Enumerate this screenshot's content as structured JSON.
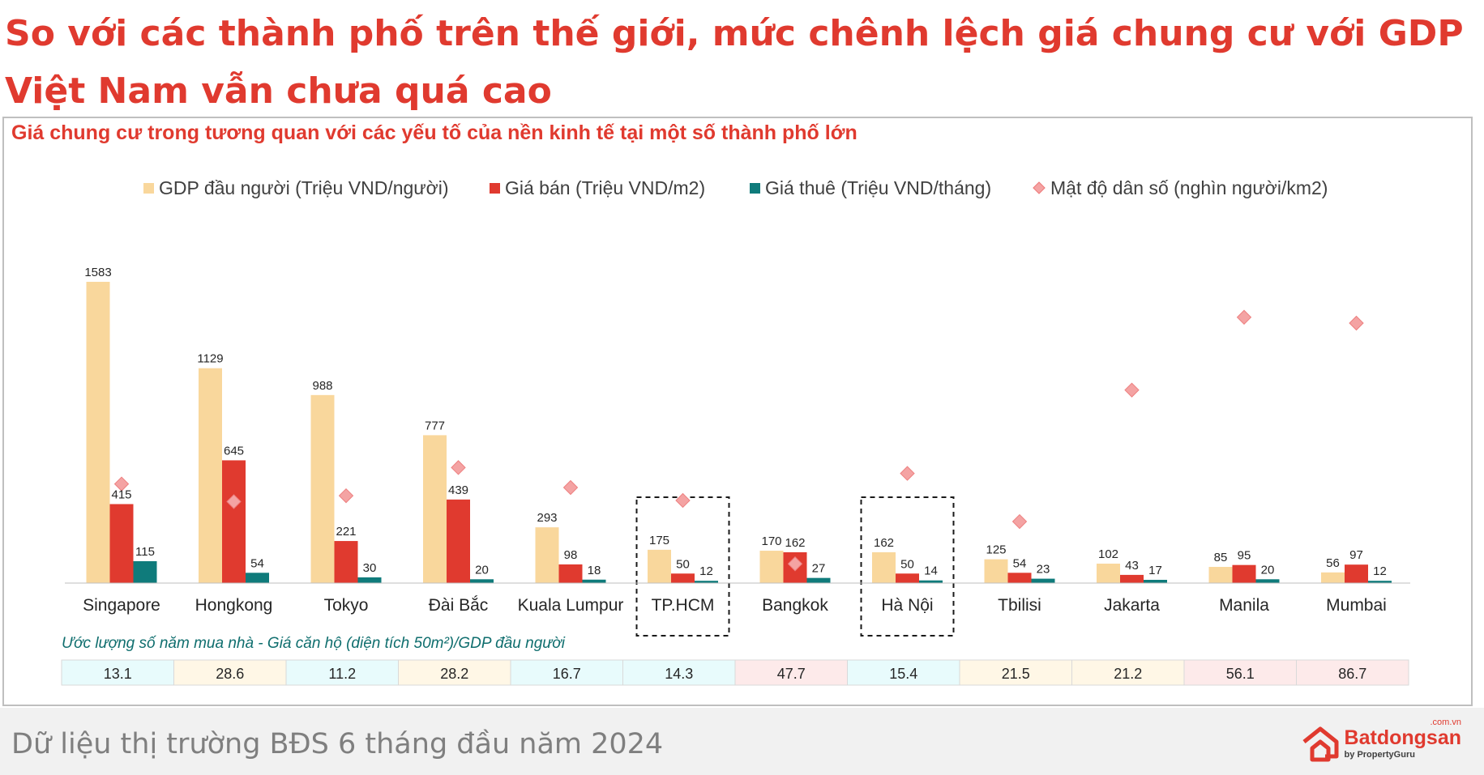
{
  "headline": "So với các thành phố trên thế giới, mức chênh lệch giá chung cư với GDP Việt Nam vẫn chưa quá cao",
  "footer": {
    "text": "Dữ liệu thị trường BĐS 6 tháng đầu năm 2024",
    "logo_name": "Batdongsan",
    "logo_domain": ".com.vn",
    "logo_sub": "by PropertyGuru"
  },
  "colors": {
    "gdp": "#f9d79c",
    "price": "#e03a2f",
    "rent": "#0f7b7b",
    "density": "#f4a3a3",
    "accent": "#e03a2f"
  },
  "chart_data": {
    "type": "bar",
    "title": "Giá chung cư trong tương quan với các yếu tố của nền kinh tế tại một số thành phố lớn",
    "legend_position": "top",
    "grid": false,
    "categories": [
      "Singapore",
      "Hongkong",
      "Tokyo",
      "Đài Bắc",
      "Kuala Lumpur",
      "TP.HCM",
      "Bangkok",
      "Hà Nội",
      "Tbilisi",
      "Jakarta",
      "Manila",
      "Mumbai"
    ],
    "highlighted_categories": [
      "TP.HCM",
      "Hà Nội"
    ],
    "ylim": [
      0,
      1600
    ],
    "series": [
      {
        "name": "GDP đầu người (Triệu VND/người)",
        "type": "bar",
        "values": [
          1583,
          1129,
          988,
          777,
          293,
          175,
          170,
          162,
          125,
          102,
          85,
          56
        ]
      },
      {
        "name": "Giá bán (Triệu VND/m2)",
        "type": "bar",
        "values": [
          415,
          645,
          221,
          439,
          98,
          50,
          162,
          50,
          54,
          43,
          95,
          97
        ]
      },
      {
        "name": "Giá thuê (Triệu VND/tháng)",
        "type": "bar",
        "values": [
          115,
          54,
          30,
          20,
          18,
          12,
          27,
          14,
          23,
          17,
          20,
          12
        ]
      },
      {
        "name": "Mật độ dân số (nghìn người/km2)",
        "type": "scatter",
        "values": [
          8.3,
          6.8,
          7.3,
          9.7,
          8.0,
          6.9,
          1.5,
          9.2,
          5.1,
          16.3,
          22.5,
          22.0
        ]
      }
    ],
    "table": {
      "label": "Ước lượng số năm mua nhà - Giá căn hộ (diện tích 50m²)/GDP đầu người",
      "values": [
        "13.1",
        "28.6",
        "11.2",
        "28.2",
        "16.7",
        "14.3",
        "47.7",
        "15.4",
        "21.5",
        "21.2",
        "56.1",
        "86.7"
      ],
      "cell_colors": [
        "#e8fbfc",
        "#fff7e6",
        "#e8fbfc",
        "#fff7e6",
        "#e8fbfc",
        "#e8fbfc",
        "#fdeaea",
        "#e8fbfc",
        "#fff7e6",
        "#fff7e6",
        "#fdeaea",
        "#fdeaea"
      ]
    }
  }
}
